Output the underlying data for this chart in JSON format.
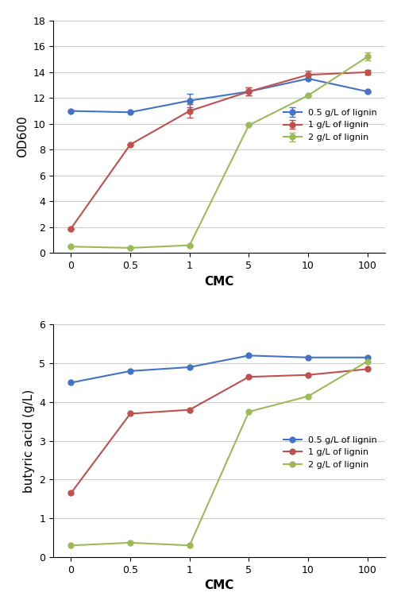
{
  "x_labels": [
    0,
    0.5,
    1,
    5,
    10,
    100
  ],
  "x_positions": [
    0,
    1,
    2,
    3,
    4,
    5
  ],
  "top_chart": {
    "series": [
      {
        "label": "0.5 g/L of lignin",
        "color": "#4472C4",
        "values": [
          11.0,
          10.9,
          11.8,
          12.5,
          13.5,
          12.5
        ],
        "yerr": [
          0.0,
          0.0,
          0.5,
          0.3,
          0.0,
          0.0
        ]
      },
      {
        "label": "1 g/L of lignin",
        "color": "#C0504D",
        "values": [
          1.9,
          8.4,
          11.0,
          12.5,
          13.8,
          14.0
        ],
        "yerr": [
          0.0,
          0.0,
          0.5,
          0.3,
          0.3,
          0.2
        ]
      },
      {
        "label": "2 g/L of lignin",
        "color": "#9BBB59",
        "values": [
          0.5,
          0.4,
          0.6,
          9.9,
          12.2,
          15.2
        ],
        "yerr": [
          0.0,
          0.0,
          0.0,
          0.0,
          0.0,
          0.3
        ]
      }
    ],
    "ylabel": "OD600",
    "xlabel": "CMC",
    "ylim": [
      0,
      18
    ],
    "yticks": [
      0,
      2,
      4,
      6,
      8,
      10,
      12,
      14,
      16,
      18
    ]
  },
  "bottom_chart": {
    "series": [
      {
        "label": "0.5 g/L of lignin",
        "color": "#4472C4",
        "values": [
          4.5,
          4.8,
          4.9,
          5.2,
          5.15,
          5.15
        ],
        "yerr": [
          0.0,
          0.0,
          0.0,
          0.0,
          0.0,
          0.0
        ]
      },
      {
        "label": "1 g/L of lignin",
        "color": "#C0504D",
        "values": [
          1.65,
          3.7,
          3.8,
          4.65,
          4.7,
          4.85
        ],
        "yerr": [
          0.0,
          0.0,
          0.0,
          0.0,
          0.0,
          0.0
        ]
      },
      {
        "label": "2 g/L of lignin",
        "color": "#9BBB59",
        "values": [
          0.3,
          0.37,
          0.3,
          3.75,
          4.15,
          5.05
        ],
        "yerr": [
          0.0,
          0.0,
          0.0,
          0.0,
          0.0,
          0.0
        ]
      }
    ],
    "ylabel": "butyric acid (g/L)",
    "xlabel": "CMC",
    "ylim": [
      0,
      6
    ],
    "yticks": [
      0,
      1,
      2,
      3,
      4,
      5,
      6
    ]
  },
  "marker": "o",
  "markersize": 5,
  "linewidth": 1.5,
  "legend_fontsize": 8,
  "axis_label_fontsize": 11,
  "tick_fontsize": 9,
  "background_color": "#FFFFFF",
  "grid_color": "#CCCCCC"
}
